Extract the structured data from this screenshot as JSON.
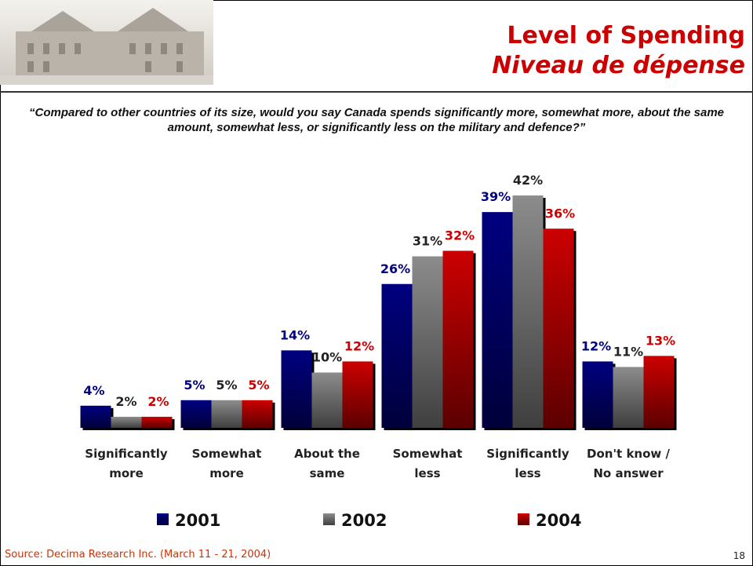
{
  "header": {
    "title": "Level of Spending",
    "subtitle": "Niveau de dépense"
  },
  "question": "“Compared to other countries of its size, would you say Canada spends significantly more, somewhat more, about the same amount, somewhat less, or significantly less on the military and defence?”",
  "chart_data": {
    "type": "bar",
    "categories": [
      "Significantly more",
      "Somewhat more",
      "About the same",
      "Somewhat less",
      "Significantly less",
      "Don't know / No answer"
    ],
    "series": [
      {
        "name": "2001",
        "color": "#000080",
        "label_color": "#000080",
        "values": [
          4,
          5,
          14,
          26,
          39,
          12
        ],
        "value_labels": [
          "4%",
          "5%",
          "14%",
          "26%",
          "39%",
          "12%"
        ]
      },
      {
        "name": "2002",
        "color": "#8c8c8c",
        "label_color": "#222222",
        "values": [
          2,
          5,
          10,
          31,
          42,
          11
        ],
        "value_labels": [
          "2%",
          "5%",
          "10%",
          "31%",
          "42%",
          "11%"
        ]
      },
      {
        "name": "2004",
        "color": "#cc0000",
        "label_color": "#cc0000",
        "values": [
          2,
          5,
          12,
          32,
          36,
          13
        ],
        "value_labels": [
          "2%",
          "5%",
          "12%",
          "32%",
          "36%",
          "13%"
        ]
      }
    ]
  },
  "source": "Source: Decima Research Inc. (March 11 - 21, 2004)",
  "page_number": "18"
}
